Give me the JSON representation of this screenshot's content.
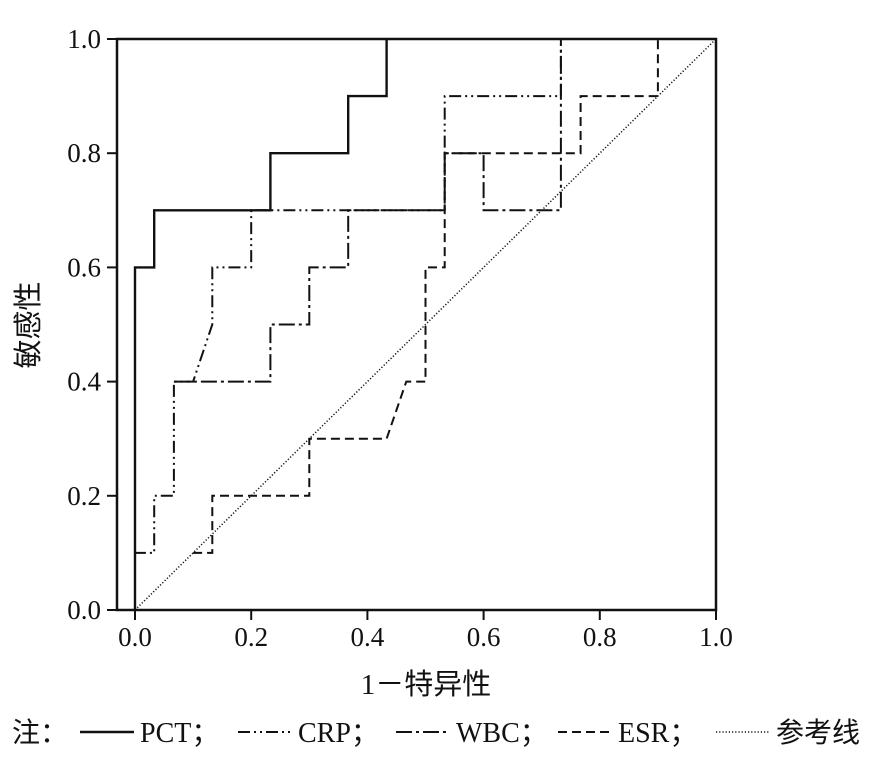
{
  "chart_data": {
    "type": "line",
    "title": "",
    "xlabel": "1－特异性",
    "ylabel": "敏感性",
    "xlim": [
      0,
      1
    ],
    "ylim": [
      0,
      1
    ],
    "x_ticks": [
      "0.0",
      "0.2",
      "0.4",
      "0.6",
      "0.8",
      "1.0"
    ],
    "y_ticks": [
      "0.0",
      "0.2",
      "0.4",
      "0.6",
      "0.8",
      "1.0"
    ],
    "grid": false,
    "legend": {
      "position": "bottom",
      "prefix": "注：",
      "separator": "；"
    },
    "series": [
      {
        "name": "PCT",
        "style": "solid",
        "x": [
          0.0,
          0.0,
          0.033,
          0.033,
          0.233,
          0.233,
          0.367,
          0.367,
          0.433,
          0.433
        ],
        "y": [
          0.0,
          0.6,
          0.6,
          0.7,
          0.7,
          0.8,
          0.8,
          0.9,
          0.9,
          1.0
        ]
      },
      {
        "name": "CRP",
        "style": "dash-dot-dot",
        "x": [
          0.0,
          0.0,
          0.033,
          0.033,
          0.067,
          0.067,
          0.1,
          0.133,
          0.133,
          0.2,
          0.2,
          0.367,
          0.367,
          0.533,
          0.533,
          0.733,
          0.733
        ],
        "y": [
          0.0,
          0.1,
          0.1,
          0.2,
          0.2,
          0.4,
          0.4,
          0.5,
          0.6,
          0.6,
          0.7,
          0.7,
          0.7,
          0.7,
          0.9,
          0.9,
          1.0
        ]
      },
      {
        "name": "WBC",
        "style": "dash-dot",
        "x": [
          0.067,
          0.233,
          0.233,
          0.3,
          0.3,
          0.367,
          0.367,
          0.533,
          0.533,
          0.6,
          0.6,
          0.733,
          0.733
        ],
        "y": [
          0.4,
          0.4,
          0.5,
          0.5,
          0.6,
          0.6,
          0.7,
          0.7,
          0.8,
          0.8,
          0.7,
          0.7,
          1.0
        ]
      },
      {
        "name": "ESR",
        "style": "dashed",
        "x": [
          0.1,
          0.133,
          0.133,
          0.3,
          0.3,
          0.433,
          0.467,
          0.5,
          0.5,
          0.533,
          0.533,
          0.767,
          0.767,
          0.9,
          0.9
        ],
        "y": [
          0.1,
          0.1,
          0.2,
          0.2,
          0.3,
          0.3,
          0.4,
          0.4,
          0.6,
          0.6,
          0.8,
          0.8,
          0.9,
          0.9,
          1.0
        ]
      },
      {
        "name": "参考线",
        "style": "dotted",
        "x": [
          0.0,
          1.0
        ],
        "y": [
          0.0,
          1.0
        ]
      }
    ]
  }
}
